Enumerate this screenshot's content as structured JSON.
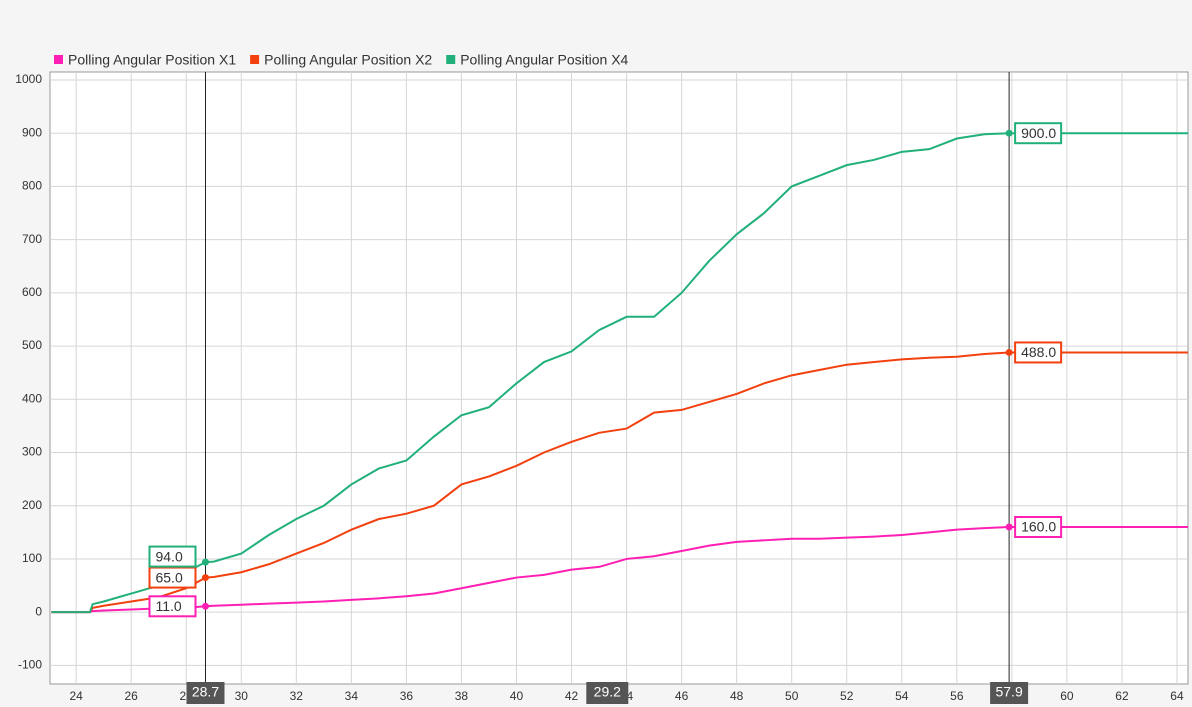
{
  "chart_data": {
    "type": "line",
    "x": [
      23.1,
      24.5,
      24.6,
      25,
      26,
      27,
      28,
      28.7,
      29,
      30,
      31,
      32,
      33,
      34,
      35,
      36,
      37,
      38,
      39,
      40,
      41,
      42,
      43,
      44,
      45,
      46,
      47,
      48,
      49,
      50,
      51,
      52,
      53,
      54,
      55,
      56,
      57,
      57.9,
      60,
      62,
      64.4
    ],
    "series": [
      {
        "name": "Polling Angular Position X1",
        "color": "#ff1fb4",
        "values": [
          0,
          0,
          2,
          3,
          5,
          7,
          8,
          11,
          12,
          14,
          16,
          18,
          20,
          23,
          26,
          30,
          35,
          45,
          55,
          65,
          70,
          80,
          85,
          100,
          105,
          115,
          125,
          132,
          135,
          138,
          138,
          140,
          142,
          145,
          150,
          155,
          158,
          160,
          160,
          160,
          160
        ]
      },
      {
        "name": "Polling Angular Position X2",
        "color": "#f2400f",
        "values": [
          0,
          0,
          8,
          12,
          20,
          28,
          45,
          65,
          66,
          75,
          90,
          110,
          130,
          155,
          175,
          185,
          200,
          240,
          255,
          275,
          300,
          320,
          337,
          345,
          375,
          380,
          395,
          410,
          430,
          445,
          455,
          465,
          470,
          475,
          478,
          480,
          485,
          488,
          488,
          488,
          488
        ]
      },
      {
        "name": "Polling Angular Position X4",
        "color": "#21b07a",
        "values": [
          0,
          0,
          15,
          20,
          35,
          50,
          75,
          94,
          95,
          110,
          145,
          175,
          200,
          240,
          270,
          285,
          330,
          370,
          385,
          430,
          470,
          490,
          530,
          555,
          555,
          600,
          660,
          710,
          750,
          800,
          820,
          840,
          850,
          865,
          870,
          890,
          898,
          900,
          900,
          900,
          900
        ]
      }
    ],
    "xlim": [
      23.05,
      64.4
    ],
    "ylim": [
      -135,
      1015
    ],
    "xticks": [
      24,
      26,
      28,
      30,
      32,
      34,
      36,
      38,
      40,
      42,
      44,
      46,
      48,
      50,
      52,
      54,
      56,
      58,
      60,
      62,
      64
    ],
    "yticks": [
      -100,
      0,
      100,
      200,
      300,
      400,
      500,
      600,
      700,
      800,
      900,
      1000
    ],
    "grid": true,
    "cursors": [
      {
        "x": 28.7,
        "values": [
          11,
          65,
          94
        ],
        "value_labels": [
          "11.0",
          "65.0",
          "94.0"
        ],
        "side": "left"
      },
      {
        "x": 57.9,
        "values": [
          160,
          488,
          900
        ],
        "value_labels": [
          "160.0",
          "488.0",
          "900.0"
        ],
        "side": "right"
      }
    ],
    "cursor_delta": 29.2
  }
}
